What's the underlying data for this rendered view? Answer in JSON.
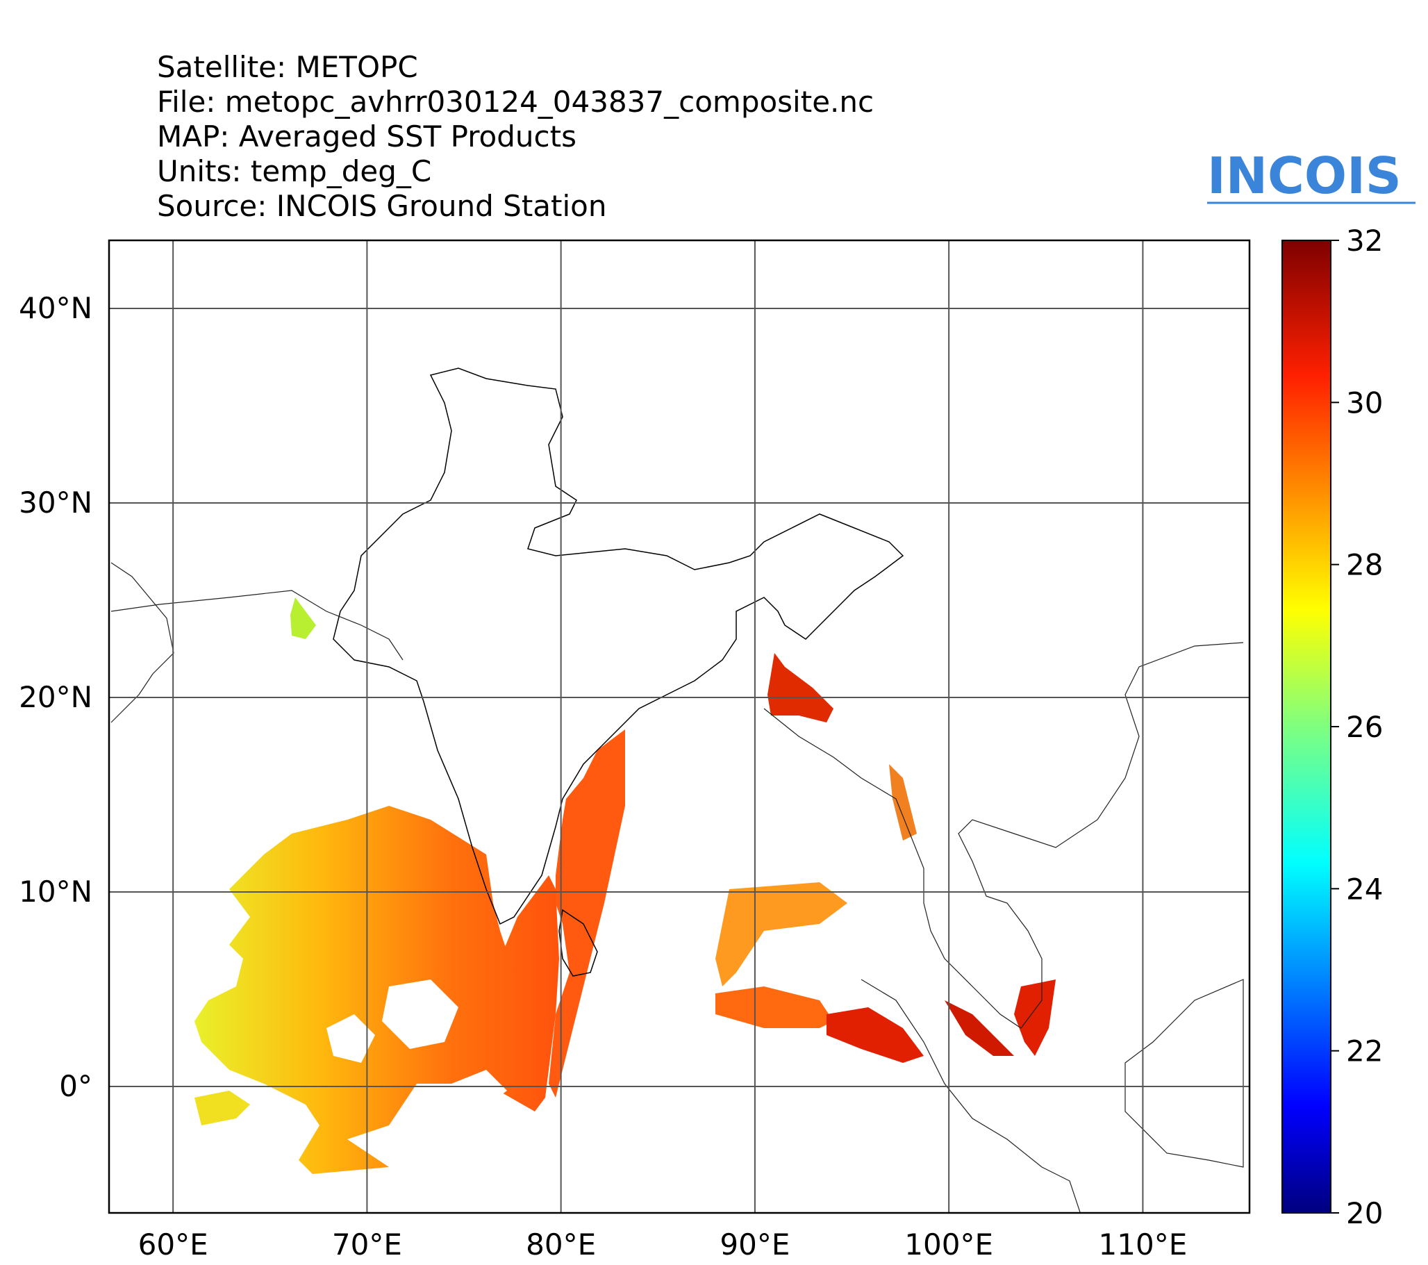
{
  "header": {
    "satellite": "Satellite: METOPC",
    "file": "File: metopc_avhrr030124_043837_composite.nc",
    "map": "MAP: Averaged SST Products",
    "units": "Units: temp_deg_C",
    "source": "Source: INCOIS Ground Station"
  },
  "logo": {
    "text": "INCOIS"
  },
  "map": {
    "lon_range": [
      56.7,
      115.5
    ],
    "lat_range": [
      -6.5,
      43.5
    ],
    "lon_ticks": [
      60,
      70,
      80,
      90,
      100,
      110
    ],
    "lon_tick_labels": [
      "60°E",
      "70°E",
      "80°E",
      "90°E",
      "100°E",
      "110°E"
    ],
    "lat_ticks": [
      0,
      10,
      20,
      30,
      40
    ],
    "lat_tick_labels": [
      "0°",
      "10°N",
      "20°N",
      "30°N",
      "40°N"
    ],
    "grid": true
  },
  "colorbar": {
    "min": 20,
    "max": 32,
    "ticks": [
      20,
      22,
      24,
      26,
      28,
      30,
      32
    ],
    "tick_labels": [
      "20",
      "22",
      "24",
      "26",
      "28",
      "30",
      "32"
    ],
    "colormap": "jet"
  },
  "colors": {
    "sst_warm": "#ff4a00",
    "sst_mid": "#ffa000",
    "sst_cool": "#c8ff20",
    "sst_hot": "#c80000",
    "logo_blue": "#3a85d9"
  }
}
